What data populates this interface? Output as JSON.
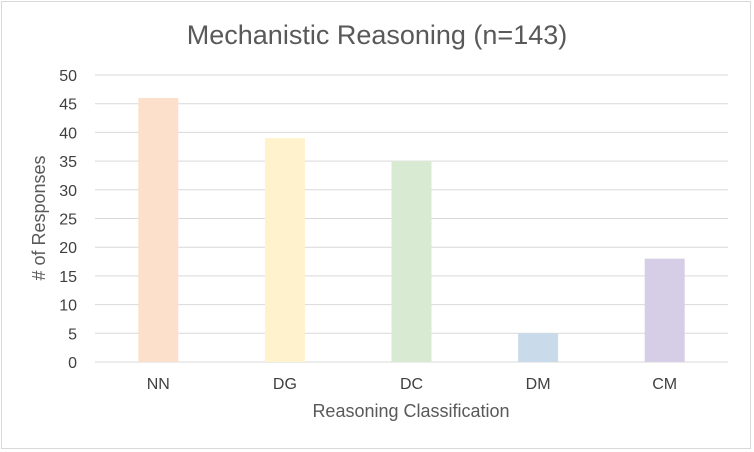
{
  "chart_data": {
    "type": "bar",
    "title": "Mechanistic Reasoning (n=143)",
    "xlabel": "Reasoning Classification",
    "ylabel": "# of Responses",
    "categories": [
      "NN",
      "DG",
      "DC",
      "DM",
      "CM"
    ],
    "values": [
      46,
      39,
      35,
      5,
      18
    ],
    "colors": [
      "#fde0cb",
      "#fff2cc",
      "#d9ead3",
      "#c9daea",
      "#d6cde6"
    ],
    "ylim": [
      0,
      50
    ],
    "yticks": [
      "0",
      "5",
      "10",
      "15",
      "20",
      "25",
      "30",
      "35",
      "40",
      "45",
      "50"
    ],
    "grid": true,
    "gridColor": "#d9d9d9",
    "legend": "none"
  }
}
